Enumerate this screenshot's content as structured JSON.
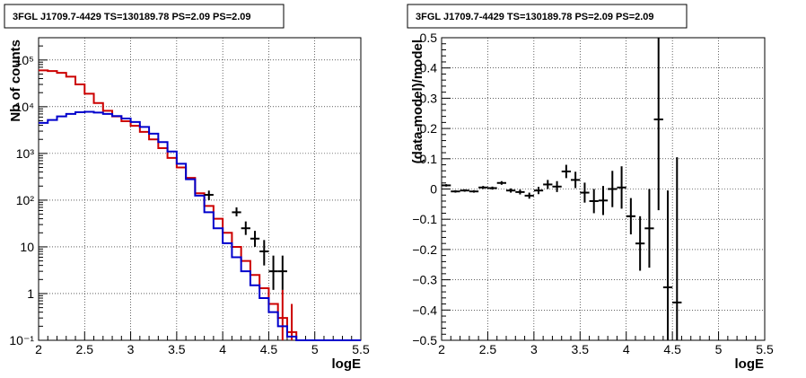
{
  "chart_data": [
    {
      "type": "line",
      "title": "3FGL J1709.7-4429 TS=130189.78 PS=2.09 PS=2.09",
      "xlabel": "logE",
      "ylabel": "Nb of counts",
      "xlim": [
        2,
        5.5
      ],
      "ylim": [
        0.1,
        300000
      ],
      "yscale": "log",
      "grid": true,
      "x_ticks": [
        "2",
        "2.5",
        "3",
        "3.5",
        "4",
        "4.5",
        "5",
        "5.5"
      ],
      "y_ticks": [
        "10⁻¹",
        "1",
        "10",
        "10²",
        "10³",
        "10⁴",
        "10⁵"
      ],
      "bin_edges": [
        2.0,
        2.1,
        2.2,
        2.3,
        2.4,
        2.5,
        2.6,
        2.7,
        2.8,
        2.9,
        3.0,
        3.1,
        3.2,
        3.3,
        3.4,
        3.5,
        3.6,
        3.7,
        3.8,
        3.9,
        4.0,
        4.1,
        4.2,
        4.3,
        4.4,
        4.5,
        4.6,
        4.7,
        4.8,
        4.9,
        5.0,
        5.1,
        5.2,
        5.3,
        5.4,
        5.5
      ],
      "series": [
        {
          "color": "#cc0000",
          "values": [
            60000,
            58000,
            53000,
            44000,
            30000,
            19000,
            12000,
            8200,
            6200,
            4900,
            3900,
            2900,
            2000,
            1300,
            800,
            500,
            300,
            140,
            75,
            40,
            20,
            10,
            5,
            2.5,
            1.3,
            0.6,
            0.3,
            0.15,
            0.1,
            0.1,
            0.1,
            0.1,
            0.1,
            0.1,
            0.1
          ],
          "err_low": [
            null,
            null,
            null,
            null,
            null,
            null,
            null,
            null,
            null,
            null,
            null,
            null,
            null,
            null,
            null,
            null,
            null,
            null,
            null,
            null,
            null,
            null,
            null,
            null,
            null,
            null,
            0.1,
            0.1,
            null,
            null,
            null,
            null,
            null,
            null,
            null
          ],
          "err_high": [
            null,
            null,
            null,
            null,
            null,
            null,
            null,
            null,
            null,
            null,
            null,
            null,
            null,
            null,
            null,
            null,
            null,
            null,
            null,
            null,
            null,
            null,
            null,
            null,
            null,
            null,
            1.2,
            0.6,
            null,
            null,
            null,
            null,
            null,
            null,
            null
          ]
        },
        {
          "color": "#0000cc",
          "values": [
            4500,
            5200,
            6200,
            7000,
            7600,
            7800,
            7500,
            7000,
            6300,
            5600,
            4700,
            3700,
            2650,
            1750,
            1100,
            600,
            280,
            125,
            55,
            25,
            12,
            6,
            3,
            1.5,
            0.8,
            0.4,
            0.2,
            0.12,
            0.1,
            0.1,
            0.1,
            0.1,
            0.1,
            0.1,
            0.1
          ]
        }
      ],
      "data_points": {
        "color": "#000000",
        "x": [
          3.85,
          4.15,
          4.25,
          4.35,
          4.45,
          4.55,
          4.65
        ],
        "y": [
          130,
          55,
          25,
          15,
          8,
          3,
          3
        ],
        "y_low": [
          100,
          45,
          18,
          10,
          4,
          1.2,
          1.2
        ],
        "y_high": [
          160,
          70,
          35,
          22,
          14,
          6.5,
          6.5
        ]
      }
    },
    {
      "type": "scatter",
      "title": "3FGL J1709.7-4429 TS=130189.78 PS=2.09 PS=2.09",
      "xlabel": "logE",
      "ylabel": "(data-model)/model",
      "xlim": [
        2,
        5.5
      ],
      "ylim": [
        -0.5,
        0.5
      ],
      "grid": true,
      "x_ticks": [
        "2",
        "2.5",
        "3",
        "3.5",
        "4",
        "4.5",
        "5",
        "5.5"
      ],
      "y_ticks": [
        "−0.5",
        "−0.4",
        "−0.3",
        "−0.2",
        "−0.1",
        "0",
        "0.1",
        "0.2",
        "0.3",
        "0.4",
        "0.5"
      ],
      "points": {
        "color": "#000000",
        "x": [
          2.05,
          2.15,
          2.25,
          2.35,
          2.45,
          2.55,
          2.65,
          2.75,
          2.85,
          2.95,
          3.05,
          3.15,
          3.25,
          3.35,
          3.45,
          3.55,
          3.65,
          3.75,
          3.85,
          3.95,
          4.05,
          4.15,
          4.25,
          4.35,
          4.45,
          4.55
        ],
        "y": [
          0.012,
          -0.008,
          -0.005,
          -0.008,
          0.005,
          0.003,
          0.02,
          -0.005,
          -0.01,
          -0.022,
          -0.005,
          0.015,
          0.008,
          0.058,
          0.03,
          -0.012,
          -0.04,
          -0.038,
          0.0,
          0.005,
          -0.09,
          -0.18,
          -0.13,
          0.23,
          -0.325,
          -0.375
        ],
        "err": [
          0.004,
          0.004,
          0.004,
          0.004,
          0.005,
          0.005,
          0.006,
          0.007,
          0.008,
          0.01,
          0.012,
          0.015,
          0.018,
          0.022,
          0.027,
          0.033,
          0.04,
          0.048,
          0.06,
          0.07,
          0.06,
          0.09,
          0.13,
          0.3,
          0.32,
          0.48
        ]
      }
    }
  ]
}
